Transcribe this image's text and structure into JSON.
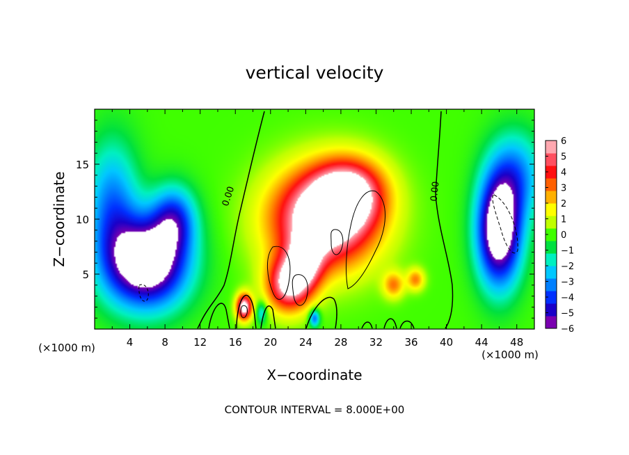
{
  "chart_data": {
    "type": "heatmap",
    "title": "vertical velocity",
    "xlabel": "X−coordinate",
    "ylabel": "Z−coordinate",
    "x_unit_label": "(×1000 m)",
    "y_unit_label": "(×1000 m)",
    "xlim": [
      0,
      50
    ],
    "ylim": [
      0,
      20
    ],
    "x_ticks": [
      4,
      8,
      12,
      16,
      20,
      24,
      28,
      32,
      36,
      40,
      44,
      48
    ],
    "y_ticks": [
      5,
      10,
      15
    ],
    "colorbar": {
      "ticks": [
        6,
        5,
        4,
        3,
        2,
        1,
        0,
        -1,
        -2,
        -3,
        -4,
        -5,
        -6
      ],
      "tick_labels": [
        "6",
        "5",
        "4",
        "3",
        "2",
        "1",
        "0",
        "−1",
        "−2",
        "−3",
        "−4",
        "−5",
        "−6"
      ],
      "range": [
        -6,
        6
      ],
      "colors": [
        "#7a00b0",
        "#1a00c8",
        "#0030ff",
        "#0080ff",
        "#00c8ff",
        "#00f0c0",
        "#00e040",
        "#40ff00",
        "#c0ff00",
        "#ffff00",
        "#ffb000",
        "#ff6000",
        "#ff1010",
        "#ff5060",
        "#ffa8b0"
      ],
      "saturated_high_color": "#ffffff",
      "saturated_low_color": "#ffffff"
    },
    "contour_labels": [
      {
        "text": "0.00",
        "x": 15.5,
        "z": 12.0
      },
      {
        "text": "0.00",
        "x": 39.0,
        "z": 12.5
      }
    ],
    "features": [
      {
        "kind": "updraft",
        "x": 26,
        "z": 10,
        "sx": 6,
        "sz": 4.5,
        "w": 8
      },
      {
        "kind": "updraft",
        "x": 29,
        "z": 12.5,
        "sx": 4,
        "sz": 3,
        "w": 5
      },
      {
        "kind": "updraft",
        "x": 22,
        "z": 4,
        "sx": 2.5,
        "sz": 2.5,
        "w": 6
      },
      {
        "kind": "updraft",
        "x": 24,
        "z": 6,
        "sx": 2,
        "sz": 2.5,
        "w": 4
      },
      {
        "kind": "updraft",
        "x": 17,
        "z": 2,
        "sx": 0.9,
        "sz": 1.2,
        "w": 7
      },
      {
        "kind": "updraft",
        "x": 34,
        "z": 4,
        "sx": 1.2,
        "sz": 1.2,
        "w": 3
      },
      {
        "kind": "updraft",
        "x": 36.5,
        "z": 4.5,
        "sx": 1,
        "sz": 1,
        "w": 3
      },
      {
        "kind": "downdraft",
        "x": 6,
        "z": 6,
        "sx": 4.5,
        "sz": 4,
        "w": -8
      },
      {
        "kind": "downdraft",
        "x": 9,
        "z": 10,
        "sx": 2.5,
        "sz": 3,
        "w": -4
      },
      {
        "kind": "downdraft",
        "x": 2,
        "z": 11,
        "sx": 3,
        "sz": 6,
        "w": -3.5
      },
      {
        "kind": "downdraft",
        "x": 46,
        "z": 9,
        "sx": 2.5,
        "sz": 5,
        "w": -8
      },
      {
        "kind": "downdraft",
        "x": 48,
        "z": 14,
        "sx": 3,
        "sz": 4,
        "w": -3
      },
      {
        "kind": "downdraft",
        "x": 25,
        "z": 1,
        "sx": 0.6,
        "sz": 0.8,
        "w": -4
      },
      {
        "kind": "downdraft",
        "x": 19,
        "z": 1.5,
        "sx": 0.6,
        "sz": 1,
        "w": -2.5
      }
    ],
    "annotation": "CONTOUR INTERVAL = 8.000E+00"
  }
}
